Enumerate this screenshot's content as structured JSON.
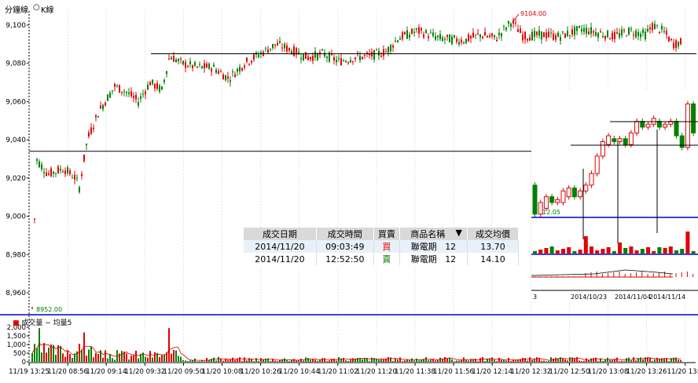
{
  "toolbar": {
    "minute_label": "分鐘線",
    "k_label": "K線"
  },
  "main_chart": {
    "y_ticks": [
      "9,100",
      "9,080",
      "9,060",
      "9,040",
      "9,020",
      "9,000",
      "8,980",
      "8,960"
    ],
    "y_values": [
      9100,
      9080,
      9060,
      9040,
      9020,
      9000,
      8980,
      8960
    ],
    "high_label": "9104.00",
    "low_label": "8952.00",
    "hlines": [
      9085,
      9034
    ]
  },
  "volume_chart": {
    "title": "成交量 − 均量5",
    "y_ticks": [
      "2,000",
      "1,500",
      "1,000",
      "500",
      "0"
    ]
  },
  "x_ticks": [
    "11/19 13:25",
    "11/20 08:56",
    "11/20 09:14",
    "11/20 09:32",
    "11/20 09:50",
    "11/20 10:08",
    "11/20 10:26",
    "11/20 10:44",
    "11/20 11:02",
    "11/20 11:20",
    "11/20 11:38",
    "11/20 11:56",
    "11/20 12:14",
    "11/20 12:32",
    "11/20 12:50",
    "11/20 13:08",
    "11/20 13:26",
    "11/20 13:4"
  ],
  "trade_table": {
    "headers": [
      "成交日期",
      "成交時間",
      "買賣",
      "商品名稱",
      "成交均價"
    ],
    "sort_icon": "▼",
    "rows": [
      {
        "date": "2014/11/20",
        "time": "09:03:49",
        "side": "買",
        "name": "聯電期",
        "month": "12",
        "price": "13.70"
      },
      {
        "date": "2014/11/20",
        "time": "12:52:50",
        "side": "賣",
        "name": "聯電期",
        "month": "12",
        "price": "14.10"
      }
    ]
  },
  "inset_chart": {
    "low_label": "12.05",
    "x_ticks": [
      "3",
      "2014/10/23",
      "2014/11/04",
      "2014/11/14"
    ]
  },
  "colors": {
    "up": "#e00000",
    "down": "#008000",
    "blue": "#0000cc"
  }
}
